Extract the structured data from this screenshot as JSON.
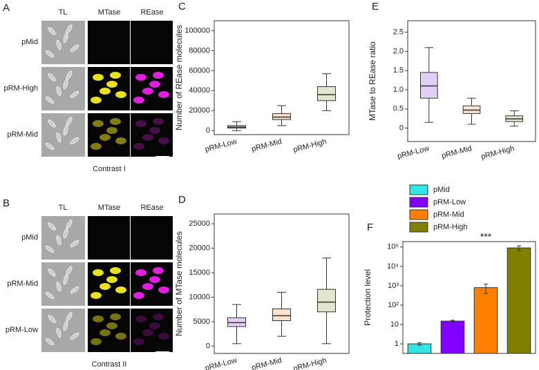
{
  "image_panels": [
    {
      "letter": "A",
      "columns": [
        "TL",
        "MTase",
        "REase"
      ],
      "rows": [
        "pMid",
        "pRM-High",
        "pRM-Mid"
      ],
      "caption": "Contrast I"
    },
    {
      "letter": "B",
      "columns": [
        "TL",
        "MTase",
        "REase"
      ],
      "rows": [
        "pMid",
        "pRM-Mid",
        "pRM-Low"
      ],
      "caption": "Contrast II"
    }
  ],
  "chart_data": [
    {
      "type": "box",
      "panel": "C",
      "ylabel": "Number of REase molecules",
      "categories": [
        "pRM-Low",
        "pRM-Mid",
        "pRM-High"
      ],
      "colors": [
        "#8a3fd8",
        "#e8903c",
        "#8c9a3c"
      ],
      "boxes": [
        {
          "whisker_low": 0,
          "q1": 2500,
          "median": 3500,
          "q3": 5000,
          "whisker_high": 9000
        },
        {
          "whisker_low": 5000,
          "q1": 11000,
          "median": 13500,
          "q3": 17000,
          "whisker_high": 25000
        },
        {
          "whisker_low": 20000,
          "q1": 30000,
          "median": 36000,
          "q3": 44000,
          "whisker_high": 57000
        }
      ],
      "ylim": [
        -4000,
        110000
      ],
      "yticks": [
        0,
        20000,
        40000,
        60000,
        80000,
        100000
      ]
    },
    {
      "type": "box",
      "panel": "D",
      "ylabel": "Number of MTase molecules",
      "categories": [
        "pRM-Low",
        "pRM-Mid",
        "pRM-High"
      ],
      "colors": [
        "#8a3fd8",
        "#e8903c",
        "#8c9a3c"
      ],
      "boxes": [
        {
          "whisker_low": 500,
          "q1": 4000,
          "median": 4800,
          "q3": 5800,
          "whisker_high": 8500
        },
        {
          "whisker_low": 2000,
          "q1": 5200,
          "median": 6200,
          "q3": 7600,
          "whisker_high": 11000
        },
        {
          "whisker_low": 500,
          "q1": 7000,
          "median": 9000,
          "q3": 11600,
          "whisker_high": 18000
        }
      ],
      "ylim": [
        -1500,
        27000
      ],
      "yticks": [
        0,
        5000,
        10000,
        15000,
        20000,
        25000
      ]
    },
    {
      "type": "box",
      "panel": "E",
      "ylabel": "MTase to REase ratio",
      "categories": [
        "pRM-Low",
        "pRM-Mid",
        "pRM-High"
      ],
      "colors": [
        "#8a3fd8",
        "#e8903c",
        "#8c9a3c"
      ],
      "boxes": [
        {
          "whisker_low": 0.15,
          "q1": 0.78,
          "median": 1.1,
          "q3": 1.45,
          "whisker_high": 2.1
        },
        {
          "whisker_low": 0.1,
          "q1": 0.38,
          "median": 0.47,
          "q3": 0.58,
          "whisker_high": 0.78
        },
        {
          "whisker_low": 0.05,
          "q1": 0.17,
          "median": 0.24,
          "q3": 0.32,
          "whisker_high": 0.45
        }
      ],
      "ylim": [
        -0.35,
        2.8
      ],
      "yticks": [
        0,
        0.5,
        {
          "value": 1,
          "label": "1.0"
        },
        1.5,
        {
          "value": 2,
          "label": "2.0"
        },
        2.5
      ]
    },
    {
      "type": "bar",
      "panel": "F",
      "ylabel": "Protection level",
      "log_scale": true,
      "annotation": "***",
      "categories": [
        "pMid",
        "pRM-Low",
        "pRM-Mid",
        "pRM-High"
      ],
      "colors": [
        "#33e6e6",
        "#8000ff",
        "#ff8000",
        "#808000"
      ],
      "values": [
        1,
        15,
        800,
        90000
      ],
      "errors": [
        0.15,
        1.5,
        400,
        25000
      ],
      "ylim": [
        0.32,
        190000
      ],
      "yticks": [
        1,
        10,
        {
          "value": 100,
          "label": "10²"
        },
        {
          "value": 1000,
          "label": "10³"
        },
        {
          "value": 10000,
          "label": "10⁴"
        },
        {
          "value": 100000,
          "label": "10⁵"
        }
      ]
    }
  ]
}
